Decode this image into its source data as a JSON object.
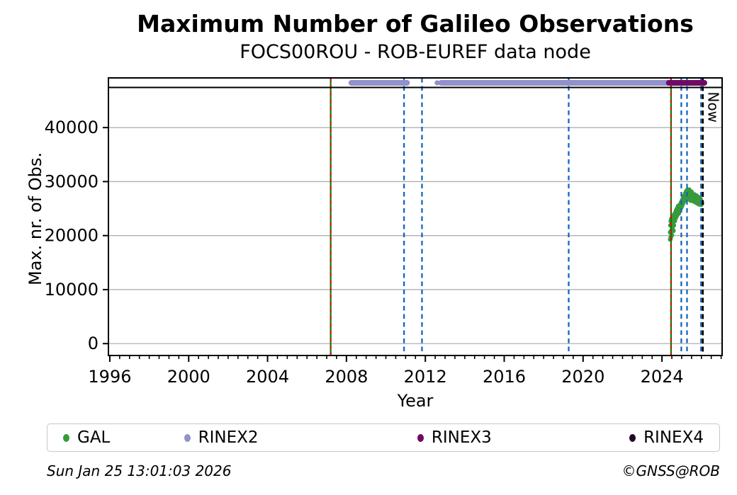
{
  "title": "Maximum Number of Galileo Observations",
  "subtitle": "FOCS00ROU - ROB-EUREF data node",
  "footer": {
    "timestamp": "Sun Jan 25 13:01:03 2026",
    "credit": "©GNSS@ROB"
  },
  "legend": [
    {
      "label": "GAL",
      "color": "#379b3c"
    },
    {
      "label": "RINEX2",
      "color": "#9191cb"
    },
    {
      "label": "RINEX3",
      "color": "#6e0a64"
    },
    {
      "label": "RINEX4",
      "color": "#220826"
    }
  ],
  "colors": {
    "gal_scatter": "#379b3c",
    "rinex2_strip": "#9191cb",
    "rinex3_strip": "#6e0a64",
    "event_blue": "#1565c0",
    "event_green": "#008000",
    "event_red": "#cc1111",
    "now_line": "#000000",
    "gridline": "#b0b0b0",
    "spine": "#000000"
  },
  "chart_data": {
    "type": "scatter",
    "title": "Maximum Number of Galileo Observations",
    "subtitle": "FOCS00ROU - ROB-EUREF data node",
    "xlabel": "Year",
    "ylabel": "Max. nr. of Obs.",
    "xlim": [
      1995.93,
      2027.05
    ],
    "ylim": [
      -2200,
      49200
    ],
    "xticks": [
      1996,
      2000,
      2004,
      2008,
      2012,
      2016,
      2020,
      2024
    ],
    "x_minor_step": 0.5,
    "yticks": [
      0,
      10000,
      20000,
      30000,
      40000
    ],
    "grid": "horizontal",
    "legend_position": "bottom",
    "now_label": "Now",
    "now_year": 2026.07,
    "event_lines": [
      {
        "year": 2007.2,
        "type": "green-red"
      },
      {
        "year": 2010.92,
        "type": "blue-dashed"
      },
      {
        "year": 2011.83,
        "type": "blue-dashed"
      },
      {
        "year": 2019.27,
        "type": "blue-dashed"
      },
      {
        "year": 2024.46,
        "type": "green-red"
      },
      {
        "year": 2024.98,
        "type": "blue-dashed"
      },
      {
        "year": 2025.27,
        "type": "blue-dashed"
      },
      {
        "year": 2025.98,
        "type": "blue-dashed"
      },
      {
        "year": 2026.07,
        "type": "now-black-dashed"
      }
    ],
    "availability_strip": {
      "rinex2_segments": [
        [
          2008.25,
          2011.07
        ],
        [
          2012.8,
          2024.35
        ]
      ],
      "rinex2_points": [
        2012.6
      ],
      "rinex3_segments": [
        [
          2024.35,
          2026.15
        ]
      ],
      "rinex4_segments": []
    },
    "series": [
      {
        "name": "GAL",
        "points": [
          [
            2024.42,
            19300
          ],
          [
            2024.42,
            20600
          ],
          [
            2024.43,
            21900
          ],
          [
            2024.45,
            19700
          ],
          [
            2024.45,
            22700
          ],
          [
            2024.47,
            20900
          ],
          [
            2024.48,
            23100
          ],
          [
            2024.5,
            20100
          ],
          [
            2024.5,
            22100
          ],
          [
            2024.52,
            23300
          ],
          [
            2024.53,
            21300
          ],
          [
            2024.55,
            22500
          ],
          [
            2024.57,
            23700
          ],
          [
            2024.58,
            20900
          ],
          [
            2024.6,
            21900
          ],
          [
            2024.62,
            23900
          ],
          [
            2024.65,
            22700
          ],
          [
            2024.67,
            24200
          ],
          [
            2024.7,
            23300
          ],
          [
            2024.72,
            24700
          ],
          [
            2024.75,
            23700
          ],
          [
            2024.78,
            25100
          ],
          [
            2024.8,
            24300
          ],
          [
            2024.83,
            25500
          ],
          [
            2024.85,
            24100
          ],
          [
            2024.88,
            25300
          ],
          [
            2024.9,
            24600
          ],
          [
            2024.93,
            25800
          ],
          [
            2024.95,
            25000
          ],
          [
            2024.98,
            26200
          ],
          [
            2025.0,
            25400
          ],
          [
            2025.03,
            26600
          ],
          [
            2025.05,
            25800
          ],
          [
            2025.08,
            27000
          ],
          [
            2025.1,
            26200
          ],
          [
            2025.13,
            27400
          ],
          [
            2025.15,
            26600
          ],
          [
            2025.18,
            27800
          ],
          [
            2025.2,
            27000
          ],
          [
            2025.23,
            28200
          ],
          [
            2025.25,
            27300
          ],
          [
            2025.28,
            28400
          ],
          [
            2025.3,
            26800
          ],
          [
            2025.33,
            28100
          ],
          [
            2025.35,
            27400
          ],
          [
            2025.38,
            28500
          ],
          [
            2025.4,
            26900
          ],
          [
            2025.42,
            27900
          ],
          [
            2025.45,
            26500
          ],
          [
            2025.48,
            27700
          ],
          [
            2025.5,
            28100
          ],
          [
            2025.53,
            27000
          ],
          [
            2025.55,
            27600
          ],
          [
            2025.58,
            26400
          ],
          [
            2025.6,
            27300
          ],
          [
            2025.63,
            26800
          ],
          [
            2025.65,
            27600
          ],
          [
            2025.68,
            26200
          ],
          [
            2025.7,
            27100
          ],
          [
            2025.73,
            26600
          ],
          [
            2025.75,
            27400
          ],
          [
            2025.78,
            26000
          ],
          [
            2025.8,
            26900
          ],
          [
            2025.83,
            26400
          ],
          [
            2025.85,
            27100
          ],
          [
            2025.88,
            25800
          ],
          [
            2025.9,
            26600
          ],
          [
            2025.93,
            26100
          ],
          [
            2025.95,
            26800
          ],
          [
            2025.98,
            25700
          ],
          [
            2026.0,
            26300
          ],
          [
            2026.03,
            26000
          ]
        ]
      }
    ]
  }
}
